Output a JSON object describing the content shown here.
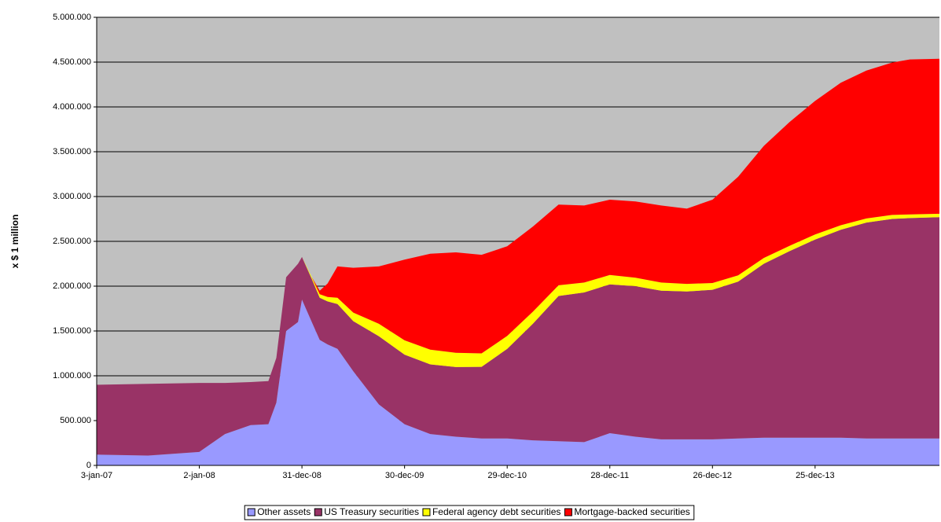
{
  "chart_data": {
    "type": "stacked_area",
    "y_label": "x $ 1 million",
    "x": [
      "3-jan-07",
      "4-jul-07",
      "2-jan-08",
      "2-apr-08",
      "2-jul-08",
      "3-sep-08",
      "1-oct-08",
      "5-nov-08",
      "17-dec-08",
      "31-dec-08",
      "4-feb-09",
      "4-mar-09",
      "1-apr-09",
      "6-may-09",
      "1-jul-09",
      "30-sep-09",
      "30-dec-09",
      "31-mar-10",
      "30-jun-10",
      "29-sep-10",
      "29-dec-10",
      "30-mar-11",
      "29-jun-11",
      "28-sep-11",
      "28-dec-11",
      "28-mar-12",
      "27-jun-12",
      "26-sep-12",
      "26-dec-12",
      "27-mar-13",
      "26-jun-13",
      "25-sep-13",
      "25-dec-13",
      "26-mar-14",
      "25-jun-14",
      "24-sep-14",
      "26-nov-14",
      "11-mar-15"
    ],
    "series": [
      {
        "name": "Other assets",
        "color": "#9999ff",
        "values": [
          120000,
          110000,
          150000,
          350000,
          450000,
          460000,
          700000,
          1500000,
          1600000,
          1850000,
          1600000,
          1400000,
          1350000,
          1300000,
          1050000,
          680000,
          460000,
          350000,
          320000,
          300000,
          300000,
          280000,
          270000,
          260000,
          360000,
          320000,
          290000,
          290000,
          290000,
          300000,
          310000,
          310000,
          310000,
          310000,
          300000,
          300000,
          300000,
          300000
        ]
      },
      {
        "name": "US Treasury securities",
        "color": "#993366",
        "values": [
          780000,
          800000,
          770000,
          570000,
          480000,
          480000,
          500000,
          600000,
          650000,
          475000,
          480000,
          470000,
          480000,
          500000,
          560000,
          760000,
          776000,
          777000,
          777000,
          800000,
          1000000,
          1300000,
          1620000,
          1670000,
          1660000,
          1680000,
          1660000,
          1650000,
          1670000,
          1750000,
          1940000,
          2080000,
          2210000,
          2320000,
          2410000,
          2450000,
          2460000,
          2470000
        ]
      },
      {
        "name": "Federal agency debt securities",
        "color": "#ffff00",
        "values": [
          0,
          0,
          0,
          0,
          0,
          0,
          0,
          0,
          0,
          0,
          20000,
          40000,
          50000,
          70000,
          95000,
          140000,
          160000,
          165000,
          160000,
          150000,
          145000,
          135000,
          120000,
          110000,
          105000,
          95000,
          90000,
          85000,
          75000,
          70000,
          65000,
          60000,
          57000,
          50000,
          45000,
          45000,
          40000,
          38000
        ]
      },
      {
        "name": "Mortgage-backed securities",
        "color": "#ff0000",
        "values": [
          0,
          0,
          0,
          0,
          0,
          0,
          0,
          0,
          0,
          0,
          0,
          40000,
          150000,
          350000,
          500000,
          640000,
          900000,
          1070000,
          1120000,
          1100000,
          1000000,
          950000,
          900000,
          860000,
          840000,
          850000,
          860000,
          840000,
          930000,
          1100000,
          1250000,
          1380000,
          1490000,
          1590000,
          1650000,
          1700000,
          1730000,
          1730000
        ]
      }
    ],
    "xlim": [
      "3-jan-07",
      "11-mar-15"
    ],
    "xticks": [
      "3-jan-07",
      "2-jan-08",
      "31-dec-08",
      "30-dec-09",
      "29-dec-10",
      "28-dec-11",
      "26-dec-12",
      "25-dec-13"
    ],
    "ylim": [
      0,
      5000000
    ],
    "yticks": [
      0,
      {
        "value": 500000,
        "label": "500.000"
      },
      {
        "value": 1000000,
        "label": "1.000.000"
      },
      {
        "value": 1500000,
        "label": "1.500.000"
      },
      {
        "value": 2000000,
        "label": "2.000.000"
      },
      {
        "value": 2500000,
        "label": "2.500.000"
      },
      {
        "value": 3000000,
        "label": "3.000.000"
      },
      {
        "value": 3500000,
        "label": "3.500.000"
      },
      {
        "value": 4000000,
        "label": "4.000.000"
      },
      {
        "value": 4500000,
        "label": "4.500.000"
      },
      {
        "value": 5000000,
        "label": "5.000.000"
      }
    ],
    "grid": true,
    "background": "#c0c0c0",
    "legend": "bottom"
  }
}
